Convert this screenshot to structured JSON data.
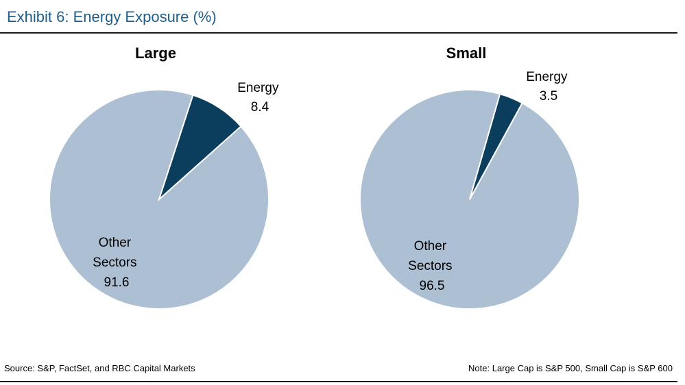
{
  "title": "Exhibit 6: Energy Exposure (%)",
  "source": "Source: S&P, FactSet, and RBC Capital Markets",
  "note": "Note: Large Cap is S&P 500, Small Cap is S&P 600",
  "colors": {
    "energy": "#0b3d5c",
    "other": "#adbfd3",
    "title": "#1f5f8b"
  },
  "chart_data": [
    {
      "type": "pie",
      "title": "Large",
      "slices": [
        {
          "label": "Energy",
          "value": 8.4
        },
        {
          "label": "Other Sectors",
          "value": 91.6
        }
      ]
    },
    {
      "type": "pie",
      "title": "Small",
      "slices": [
        {
          "label": "Energy",
          "value": 3.5
        },
        {
          "label": "Other Sectors",
          "value": 96.5
        }
      ]
    }
  ]
}
